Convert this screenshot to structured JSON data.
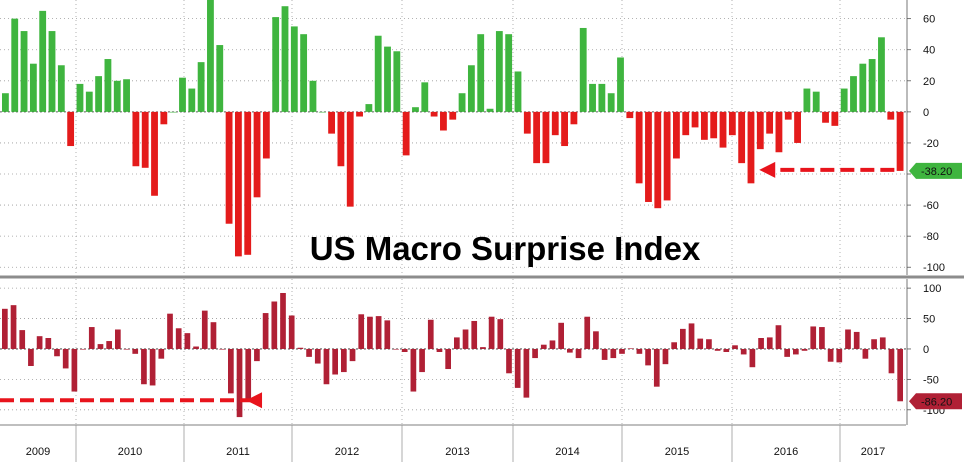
{
  "chart_data": [
    {
      "type": "bar",
      "title": "US Macro Surprise Index",
      "ylim": [
        -105,
        72
      ],
      "yticks": [
        60,
        40,
        20,
        0,
        -20,
        -40,
        -60,
        -80,
        -100
      ],
      "grid": true,
      "colors": {
        "positive": "#3fb53f",
        "negative": "#e41b1b"
      },
      "last_value_label": "-38.20",
      "values": [
        12,
        60,
        52,
        31,
        65,
        52,
        30,
        -22,
        18,
        13,
        23,
        34,
        20,
        21,
        -35,
        -36,
        -54,
        -8,
        0,
        22,
        15,
        32,
        74,
        43,
        -72,
        -93,
        -92,
        -55,
        -30,
        61,
        68,
        55,
        50,
        20,
        0,
        -14,
        -35,
        -61,
        -3,
        5,
        49,
        42,
        39,
        -28,
        3,
        19,
        -3,
        -12,
        -5,
        12,
        30,
        50,
        2,
        52,
        50,
        26,
        -14,
        -33,
        -33,
        -15,
        -22,
        -8,
        54,
        18,
        18,
        12,
        35,
        -4,
        -46,
        -58,
        -62,
        -57,
        -30,
        -15,
        -10,
        -18,
        -17,
        -23,
        -15,
        -33,
        -46,
        -24,
        -14,
        -26,
        -5,
        -20,
        15,
        13,
        -7,
        -9,
        15,
        23,
        31,
        34,
        48,
        -5,
        -38
      ],
      "annotations": [
        {
          "type": "arrow",
          "from_index": 96,
          "to_index": 80,
          "at_value": -38
        }
      ]
    },
    {
      "type": "bar",
      "x_axis_labels": [
        "2009",
        "2010",
        "2011",
        "2012",
        "2013",
        "2014",
        "2015",
        "2016",
        "2017"
      ],
      "ylim": [
        -125,
        115
      ],
      "yticks": [
        100,
        50,
        0,
        -50,
        -100
      ],
      "grid": true,
      "colors": {
        "bars": "#b02035"
      },
      "last_value_label": "-86.20",
      "values": [
        66,
        72,
        31,
        -28,
        21,
        18,
        -12,
        -32,
        -70,
        0,
        36,
        8,
        13,
        32,
        0,
        -8,
        -58,
        -60,
        -16,
        58,
        34,
        26,
        4,
        63,
        44,
        0,
        -73,
        -112,
        -82,
        -20,
        59,
        78,
        92,
        55,
        2,
        -13,
        -24,
        -58,
        -42,
        -38,
        -20,
        57,
        53,
        54,
        47,
        0,
        -5,
        -70,
        -38,
        48,
        -5,
        -33,
        19,
        32,
        46,
        3,
        53,
        49,
        -40,
        -64,
        -80,
        -15,
        7,
        14,
        43,
        -6,
        -15,
        53,
        29,
        -18,
        -15,
        -8,
        1,
        -8,
        -27,
        -62,
        -25,
        11,
        33,
        42,
        17,
        16,
        -3,
        -5,
        6,
        -9,
        -30,
        18,
        19,
        39,
        -13,
        -9,
        -3,
        37,
        36,
        -21,
        -22,
        32,
        28,
        -16,
        16,
        19,
        -40,
        -86
      ],
      "annotations": [
        {
          "type": "arrow",
          "from_index": 104,
          "to_index": 27,
          "at_value": -86
        }
      ]
    }
  ]
}
